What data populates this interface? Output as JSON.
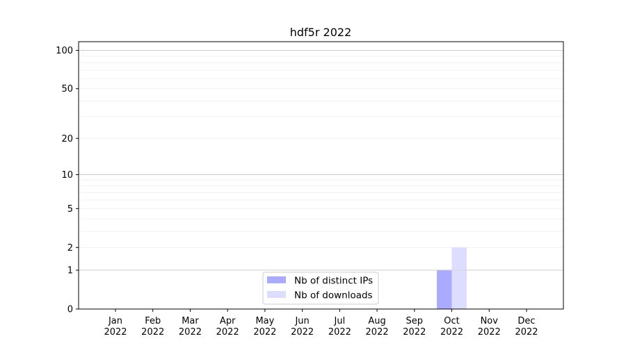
{
  "chart_data": {
    "type": "bar",
    "title": "hdf5r 2022",
    "xlabel": "",
    "ylabel": "",
    "yscale": "symlog",
    "ylim": [
      0,
      117
    ],
    "yticks": [
      0,
      1,
      2,
      5,
      10,
      20,
      50,
      100
    ],
    "ytick_labels": [
      "0",
      "1",
      "2",
      "5",
      "10",
      "20",
      "50",
      "100"
    ],
    "grid": true,
    "legend_placement": "lower-center",
    "categories": [
      "Jan\n2022",
      "Feb\n2022",
      "Mar\n2022",
      "Apr\n2022",
      "May\n2022",
      "Jun\n2022",
      "Jul\n2022",
      "Aug\n2022",
      "Sep\n2022",
      "Oct\n2022",
      "Nov\n2022",
      "Dec\n2022"
    ],
    "series": [
      {
        "name": "Nb of distinct IPs",
        "color": "#aaaaff",
        "values": [
          0,
          0,
          0,
          0,
          0,
          0,
          0,
          0,
          0,
          1,
          0,
          0
        ]
      },
      {
        "name": "Nb of downloads",
        "color": "#ddddff",
        "values": [
          0,
          0,
          0,
          0,
          0,
          0,
          0,
          0,
          0,
          2,
          0,
          0
        ]
      }
    ]
  }
}
